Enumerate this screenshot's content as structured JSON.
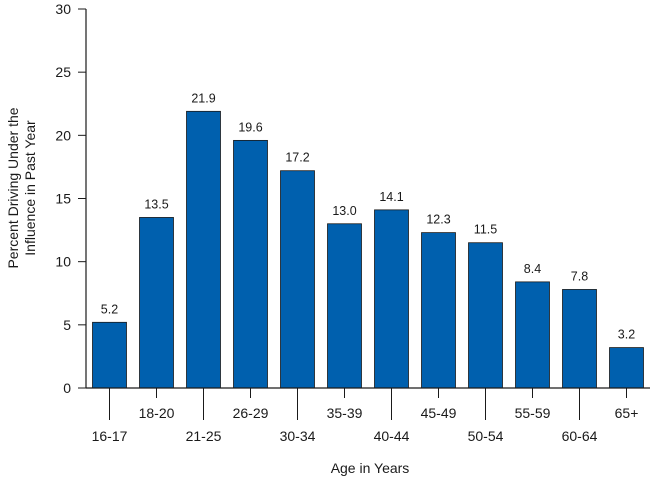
{
  "colors": {
    "bar": "#0060ae",
    "axis": "#1a1a1a",
    "background": "#ffffff"
  },
  "chart_data": {
    "type": "bar",
    "title": "",
    "xlabel": "Age in Years",
    "ylabel_lines": [
      "Percent Driving Under the",
      "Influence in Past Year"
    ],
    "ylim": [
      0,
      30
    ],
    "y_ticks": [
      0,
      5,
      10,
      15,
      20,
      25,
      30
    ],
    "categories": [
      "16-17",
      "18-20",
      "21-25",
      "26-29",
      "30-34",
      "35-39",
      "40-44",
      "45-49",
      "50-54",
      "55-59",
      "60-64",
      "65+"
    ],
    "values": [
      5.2,
      13.5,
      21.9,
      19.6,
      17.2,
      13.0,
      14.1,
      12.3,
      11.5,
      8.4,
      7.8,
      3.2
    ],
    "value_labels": [
      "5.2",
      "13.5",
      "21.9",
      "19.6",
      "17.2",
      "13.0",
      "14.1",
      "12.3",
      "11.5",
      "8.4",
      "7.8",
      "3.2"
    ],
    "grid": false,
    "legend": "none",
    "x_label_layout": "staggered"
  }
}
